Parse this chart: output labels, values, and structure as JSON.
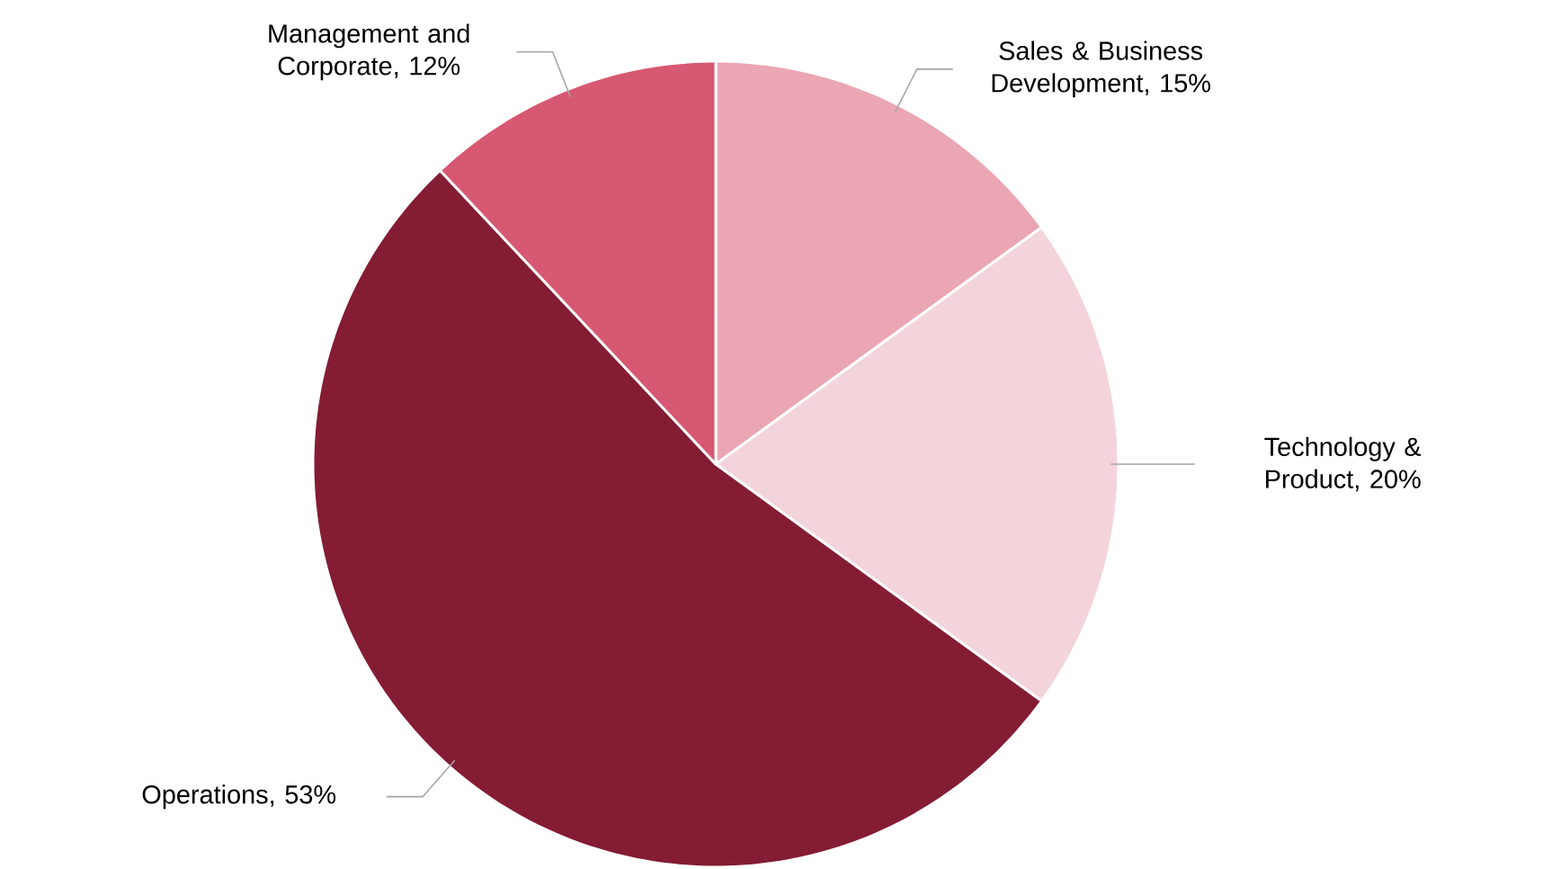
{
  "chart_data": {
    "type": "pie",
    "categories": [
      "Sales & Business Development",
      "Technology & Product",
      "Operations",
      "Management and Corporate"
    ],
    "values": [
      15,
      20,
      53,
      12
    ],
    "colors": [
      "#eba6b3",
      "#f4d4db",
      "#841c34",
      "#d75872"
    ],
    "data_labels": true,
    "value_labels": [
      ", 15%",
      ", 20%",
      ", 53%",
      ", 12%"
    ]
  }
}
